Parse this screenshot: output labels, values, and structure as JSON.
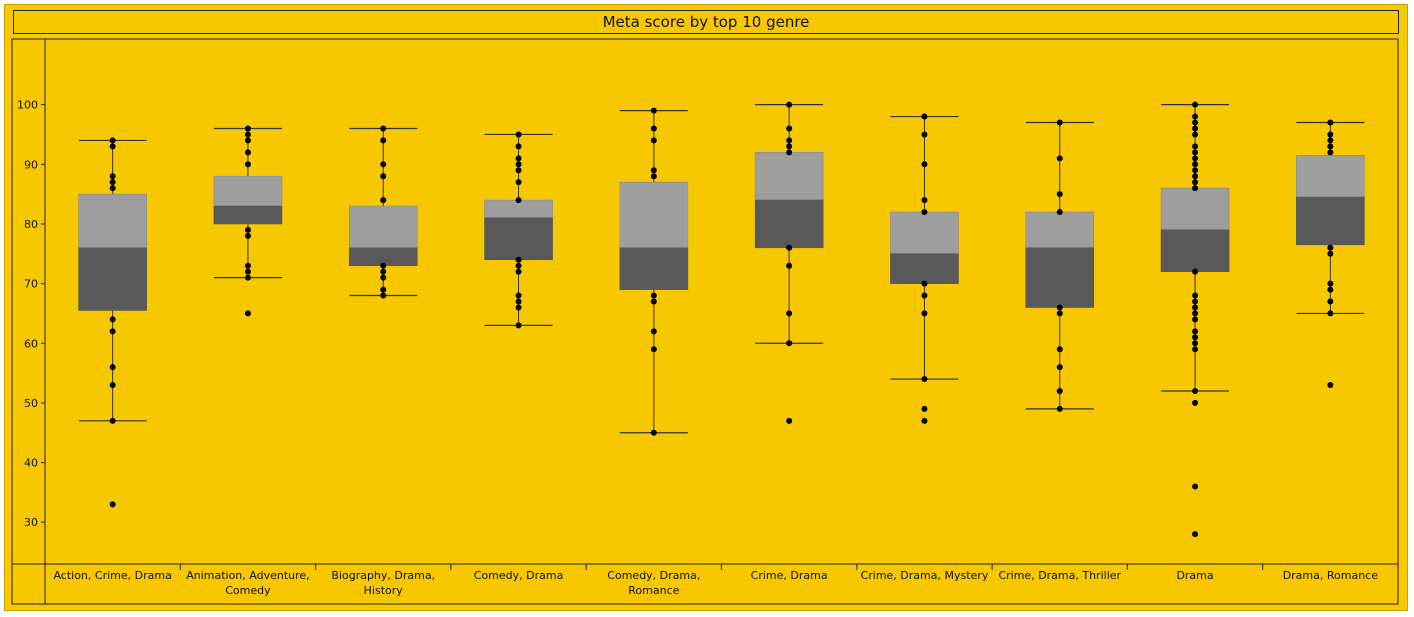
{
  "chart_data": {
    "type": "boxplot",
    "title": "Meta score by top 10 genre",
    "xlabel": "",
    "ylabel": "",
    "ylim": [
      23,
      111
    ],
    "yticks": [
      30,
      40,
      50,
      60,
      70,
      80,
      90,
      100
    ],
    "colors": {
      "upper_box": "#9e9e9e",
      "lower_box": "#595959",
      "point": "#000000",
      "background": "#f7c800"
    },
    "categories": [
      {
        "label": [
          "Action, Crime, Drama"
        ],
        "min": 47,
        "q1": 65.5,
        "median": 76,
        "q3": 85,
        "max": 94,
        "points": [
          94,
          93,
          88,
          87,
          86,
          64,
          62,
          56,
          53,
          47,
          33
        ]
      },
      {
        "label": [
          "Animation, Adventure,",
          "Comedy"
        ],
        "min": 71,
        "q1": 80,
        "median": 83,
        "q3": 88,
        "max": 96,
        "points": [
          96,
          95,
          94,
          92,
          90,
          79,
          78,
          73,
          72,
          71,
          65
        ]
      },
      {
        "label": [
          "Biography, Drama,",
          "History"
        ],
        "min": 68,
        "q1": 73,
        "median": 76,
        "q3": 83,
        "max": 96,
        "points": [
          96,
          94,
          90,
          88,
          84,
          73,
          72,
          71,
          69,
          68
        ]
      },
      {
        "label": [
          "Comedy, Drama"
        ],
        "min": 63,
        "q1": 74,
        "median": 81,
        "q3": 84,
        "max": 95,
        "points": [
          95,
          93,
          91,
          90,
          89,
          87,
          84,
          74,
          73,
          72,
          68,
          67,
          66,
          63
        ]
      },
      {
        "label": [
          "Comedy, Drama,",
          "Romance"
        ],
        "min": 45,
        "q1": 69,
        "median": 76,
        "q3": 87,
        "max": 99,
        "points": [
          99,
          96,
          94,
          89,
          88,
          68,
          67,
          62,
          59,
          45
        ]
      },
      {
        "label": [
          "Crime, Drama"
        ],
        "min": 60,
        "q1": 76,
        "median": 84,
        "q3": 92,
        "max": 100,
        "points": [
          100,
          96,
          94,
          93,
          92,
          76,
          73,
          65,
          60,
          47
        ]
      },
      {
        "label": [
          "Crime, Drama, Mystery"
        ],
        "min": 54,
        "q1": 70,
        "median": 75,
        "q3": 82,
        "max": 98,
        "points": [
          98,
          95,
          90,
          84,
          82,
          70,
          68,
          65,
          54,
          49,
          47
        ]
      },
      {
        "label": [
          "Crime, Drama, Thriller"
        ],
        "min": 49,
        "q1": 66,
        "median": 76,
        "q3": 82,
        "max": 97,
        "points": [
          97,
          91,
          85,
          82,
          66,
          65,
          59,
          56,
          52,
          49
        ]
      },
      {
        "label": [
          "Drama"
        ],
        "min": 52,
        "q1": 72,
        "median": 79,
        "q3": 86,
        "max": 100,
        "points": [
          100,
          98,
          97,
          96,
          95,
          93,
          92,
          91,
          90,
          89,
          88,
          87,
          86,
          72,
          68,
          67,
          66,
          65,
          64,
          62,
          61,
          60,
          59,
          52,
          50,
          36,
          28
        ]
      },
      {
        "label": [
          "Drama, Romance"
        ],
        "min": 65,
        "q1": 76.5,
        "median": 84.5,
        "q3": 91.5,
        "max": 97,
        "points": [
          97,
          95,
          94,
          93,
          92,
          76,
          75,
          70,
          69,
          67,
          65,
          53
        ]
      }
    ]
  }
}
